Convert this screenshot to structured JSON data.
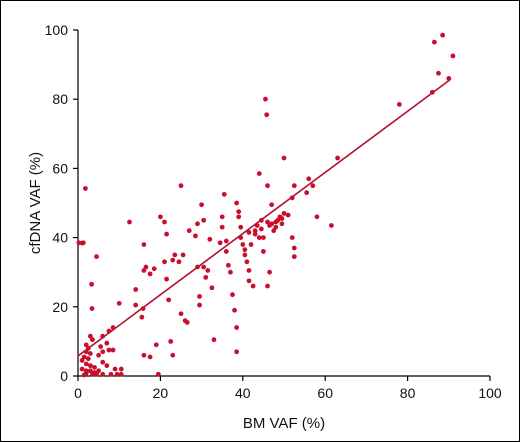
{
  "chart_data": {
    "type": "scatter",
    "title": "",
    "xlabel": "BM VAF (%)",
    "ylabel": "cfDNA VAF (%)",
    "xlim": [
      0,
      100
    ],
    "ylim": [
      0,
      100
    ],
    "xticks": [
      "0",
      "20",
      "40",
      "60",
      "80",
      "100"
    ],
    "yticks": [
      "0",
      "20",
      "40",
      "60",
      "80",
      "100"
    ],
    "grid": false,
    "legend": "none",
    "marker_color": "#c8102e",
    "line_color": "#b01030",
    "trend_line": {
      "x": [
        0,
        90.5
      ],
      "y": [
        5.8,
        85.8
      ]
    },
    "points": [
      [
        0.2,
        38.5
      ],
      [
        1.0,
        38.4
      ],
      [
        1.3,
        38.5
      ],
      [
        1.8,
        54.2
      ],
      [
        3.3,
        26.5
      ],
      [
        3.4,
        19.5
      ],
      [
        3.0,
        11.5
      ],
      [
        3.5,
        10.5
      ],
      [
        2.0,
        9.0
      ],
      [
        2.5,
        8.0
      ],
      [
        2.0,
        7.0
      ],
      [
        3.0,
        6.5
      ],
      [
        1.5,
        5.5
      ],
      [
        2.5,
        5.0
      ],
      [
        1.0,
        4.5
      ],
      [
        2.0,
        3.5
      ],
      [
        3.0,
        3.0
      ],
      [
        4.0,
        2.5
      ],
      [
        1.0,
        2.0
      ],
      [
        2.0,
        1.5
      ],
      [
        3.0,
        1.5
      ],
      [
        4.0,
        1.0
      ],
      [
        5.0,
        1.5
      ],
      [
        2.0,
        0.8
      ],
      [
        3.5,
        0.5
      ],
      [
        4.5,
        0.5
      ],
      [
        1.5,
        0.3
      ],
      [
        6.0,
        0.5
      ],
      [
        8.0,
        0.5
      ],
      [
        9.5,
        0.5
      ],
      [
        10.5,
        0.5
      ],
      [
        9.0,
        2.0
      ],
      [
        10.5,
        2.0
      ],
      [
        7.0,
        3.0
      ],
      [
        6.0,
        4.0
      ],
      [
        5.0,
        6.0
      ],
      [
        6.0,
        7.0
      ],
      [
        7.5,
        7.5
      ],
      [
        8.5,
        7.5
      ],
      [
        5.5,
        8.5
      ],
      [
        7.0,
        9.5
      ],
      [
        6.0,
        11.5
      ],
      [
        7.5,
        13.0
      ],
      [
        8.5,
        14.0
      ],
      [
        4.5,
        34.5
      ],
      [
        10.0,
        21.0
      ],
      [
        12.5,
        44.5
      ],
      [
        14.0,
        20.5
      ],
      [
        14.0,
        25.0
      ],
      [
        15.5,
        17.0
      ],
      [
        15.8,
        19.5
      ],
      [
        16.0,
        30.5
      ],
      [
        16.5,
        31.5
      ],
      [
        16.0,
        38.0
      ],
      [
        17.5,
        29.5
      ],
      [
        16.0,
        6.0
      ],
      [
        17.5,
        5.5
      ],
      [
        18.5,
        31.0
      ],
      [
        19.0,
        9.0
      ],
      [
        19.5,
        0.5
      ],
      [
        20.0,
        46.0
      ],
      [
        21.0,
        44.5
      ],
      [
        21.5,
        41.0
      ],
      [
        21.0,
        33.0
      ],
      [
        21.5,
        28.0
      ],
      [
        22.0,
        22.0
      ],
      [
        22.5,
        10.0
      ],
      [
        23.0,
        6.0
      ],
      [
        23.0,
        33.5
      ],
      [
        23.5,
        35.0
      ],
      [
        24.5,
        33.0
      ],
      [
        25.0,
        55.0
      ],
      [
        25.0,
        18.0
      ],
      [
        25.5,
        35.0
      ],
      [
        26.0,
        16.0
      ],
      [
        26.5,
        15.5
      ],
      [
        27.0,
        42.0
      ],
      [
        28.5,
        40.5
      ],
      [
        29.0,
        44.0
      ],
      [
        29.0,
        31.5
      ],
      [
        29.5,
        23.0
      ],
      [
        29.5,
        20.5
      ],
      [
        30.0,
        49.5
      ],
      [
        30.5,
        45.0
      ],
      [
        30.5,
        31.5
      ],
      [
        31.0,
        28.5
      ],
      [
        31.5,
        30.5
      ],
      [
        32.0,
        39.5
      ],
      [
        32.5,
        25.5
      ],
      [
        33.0,
        10.5
      ],
      [
        34.5,
        38.5
      ],
      [
        35.0,
        46.0
      ],
      [
        35.0,
        43.0
      ],
      [
        35.5,
        52.5
      ],
      [
        36.0,
        39.0
      ],
      [
        36.0,
        36.0
      ],
      [
        36.5,
        32.0
      ],
      [
        37.0,
        30.0
      ],
      [
        37.5,
        23.5
      ],
      [
        38.0,
        19.0
      ],
      [
        38.5,
        14.0
      ],
      [
        38.5,
        7.0
      ],
      [
        38.5,
        50.0
      ],
      [
        39.0,
        47.5
      ],
      [
        39.0,
        46.0
      ],
      [
        39.5,
        43.0
      ],
      [
        39.5,
        40.0
      ],
      [
        40.0,
        38.0
      ],
      [
        40.5,
        36.5
      ],
      [
        40.5,
        35.0
      ],
      [
        41.0,
        33.0
      ],
      [
        41.5,
        30.5
      ],
      [
        41.5,
        27.5
      ],
      [
        41.5,
        41.5
      ],
      [
        42.0,
        38.0
      ],
      [
        42.5,
        26.0
      ],
      [
        43.0,
        42.0
      ],
      [
        43.5,
        43.5
      ],
      [
        44.0,
        58.5
      ],
      [
        44.5,
        45.0
      ],
      [
        44.5,
        42.5
      ],
      [
        45.0,
        40.0
      ],
      [
        45.0,
        36.0
      ],
      [
        45.5,
        80.0
      ],
      [
        45.8,
        75.5
      ],
      [
        46.0,
        55.0
      ],
      [
        46.0,
        44.5
      ],
      [
        46.5,
        43.5
      ],
      [
        47.0,
        49.5
      ],
      [
        47.0,
        44.0
      ],
      [
        47.5,
        42.0
      ],
      [
        48.0,
        43.0
      ],
      [
        48.5,
        45.0
      ],
      [
        49.0,
        46.0
      ],
      [
        49.5,
        44.0
      ],
      [
        50.0,
        47.0
      ],
      [
        50.0,
        63.0
      ],
      [
        51.0,
        46.5
      ],
      [
        46.5,
        30.0
      ],
      [
        46.0,
        26.0
      ],
      [
        52.0,
        40.0
      ],
      [
        52.5,
        37.0
      ],
      [
        52.5,
        34.5
      ],
      [
        52.0,
        51.5
      ],
      [
        52.5,
        55.0
      ],
      [
        55.5,
        53.0
      ],
      [
        56.0,
        57.0
      ],
      [
        57.0,
        55.0
      ],
      [
        58.0,
        46.0
      ],
      [
        61.5,
        43.5
      ],
      [
        63.0,
        63.0
      ],
      [
        78.0,
        78.5
      ],
      [
        86.0,
        82.0
      ],
      [
        86.5,
        96.5
      ],
      [
        87.5,
        87.5
      ],
      [
        88.5,
        98.5
      ],
      [
        90.0,
        86.0
      ],
      [
        91.0,
        92.5
      ],
      [
        44.0,
        40.0
      ],
      [
        43.0,
        41.0
      ],
      [
        48.0,
        44.5
      ],
      [
        49.5,
        45.5
      ]
    ]
  }
}
